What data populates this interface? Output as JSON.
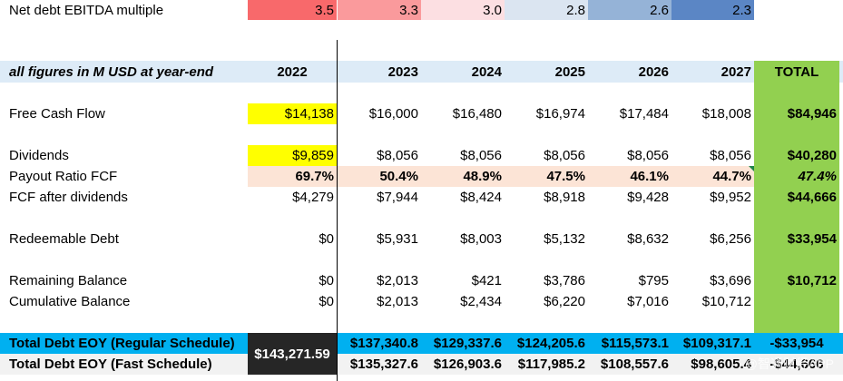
{
  "columns": [
    "C0",
    "C1",
    "C2",
    "C3",
    "C4",
    "C5",
    "C6",
    "C7"
  ],
  "ebitda": {
    "label": "Net debt EBITDA multiple",
    "values": [
      "3.5",
      "3.3",
      "3.0",
      "2.8",
      "2.6",
      "2.3"
    ],
    "colors": [
      "#f8696b",
      "#fa9a9c",
      "#fcdfe2",
      "#dbe5f1",
      "#95b3d7",
      "#5b86c5"
    ]
  },
  "header": {
    "label": "all figures in M USD at year-end",
    "years": [
      "2022",
      "2023",
      "2024",
      "2025",
      "2026",
      "2027"
    ],
    "total": "TOTAL"
  },
  "rows": {
    "fcf": {
      "label": "Free Cash Flow",
      "values": [
        "$14,138",
        "$16,000",
        "$16,480",
        "$16,974",
        "$17,484",
        "$18,008"
      ],
      "total": "$84,946"
    },
    "dividends": {
      "label": "Dividends",
      "values": [
        "$9,859",
        "$8,056",
        "$8,056",
        "$8,056",
        "$8,056",
        "$8,056"
      ],
      "total": "$40,280"
    },
    "payout": {
      "label": "Payout Ratio FCF",
      "values": [
        "69.7%",
        "50.4%",
        "48.9%",
        "47.5%",
        "46.1%",
        "44.7%"
      ],
      "total": "47.4%"
    },
    "fcf_after": {
      "label": "FCF after dividends",
      "values": [
        "$4,279",
        "$7,944",
        "$8,424",
        "$8,918",
        "$9,428",
        "$9,952"
      ],
      "total": "$44,666"
    },
    "redeemable": {
      "label": "Redeemable Debt",
      "values": [
        "$0",
        "$5,931",
        "$8,003",
        "$5,132",
        "$8,632",
        "$6,256"
      ],
      "total": "$33,954"
    },
    "remaining": {
      "label": "Remaining Balance",
      "values": [
        "$0",
        "$2,013",
        "$421",
        "$3,786",
        "$795",
        "$3,696"
      ],
      "total": "$10,712"
    },
    "cumulative": {
      "label": "Cumulative Balance",
      "values": [
        "$0",
        "$2,013",
        "$2,434",
        "$6,220",
        "$7,016",
        "$10,712"
      ],
      "total": ""
    },
    "total_regular": {
      "label": "Total Debt EOY (Regular Schedule)",
      "values": [
        "$137,340.8",
        "$129,337.6",
        "$124,205.6",
        "$115,573.1",
        "$109,317.1"
      ],
      "total": "-$33,954"
    },
    "total_fast": {
      "label": "Total Debt EOY (Fast Schedule)",
      "values": [
        "$135,327.6",
        "$126,903.6",
        "$117,985.2",
        "$108,557.6",
        "$98,605.4"
      ],
      "total": "-$44,666"
    },
    "start_debt": "$143,271.59"
  },
  "colors": {
    "highlight_yellow": "#ffff00",
    "payout_bg": "#fce4d6",
    "header_bg": "#ddebf7",
    "total_green": "#92d050",
    "regular_bg": "#00b0f0",
    "fast_bg": "#f2f2f2",
    "start_bg": "#262626"
  },
  "watermark": "@智通财经APP"
}
